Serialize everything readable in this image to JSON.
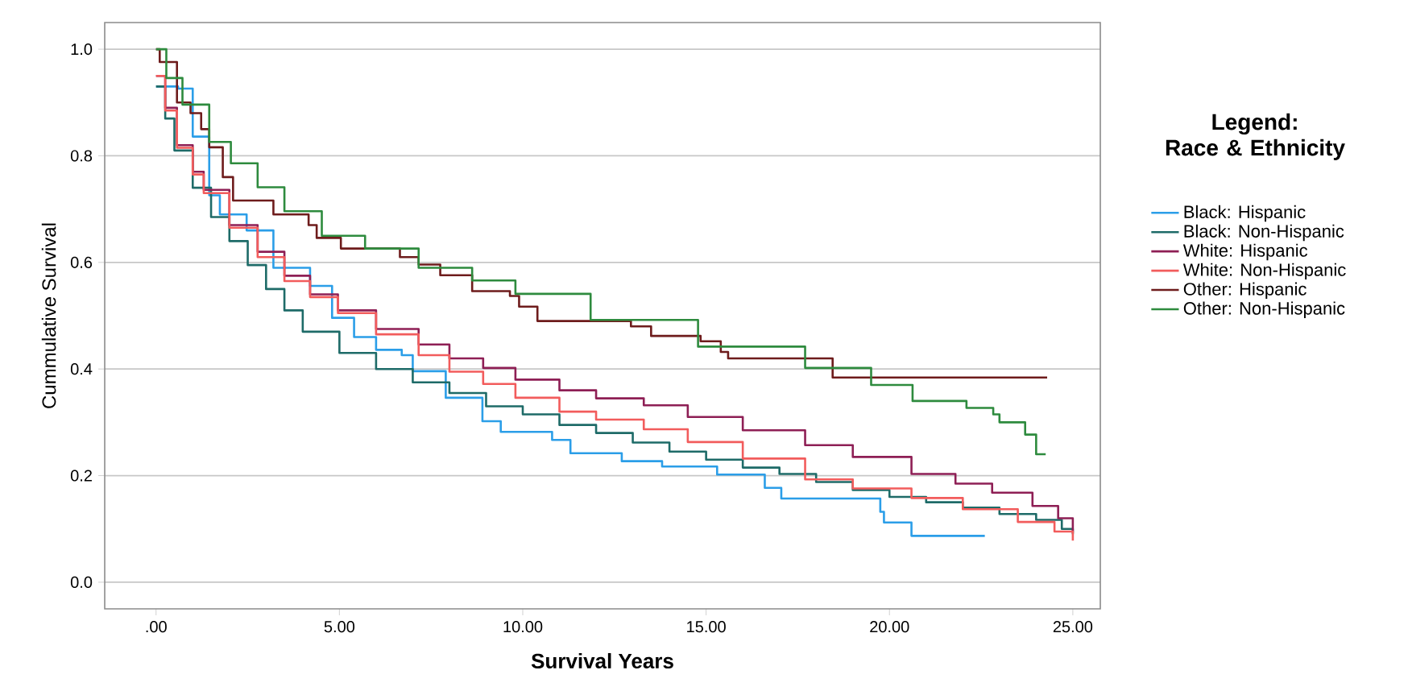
{
  "chart_data": {
    "type": "step",
    "xlabel": "Survival Years",
    "ylabel": "Cummulative Survival",
    "legend_title": "Legend: Race & Ethnicity",
    "legend": "right",
    "grid": "y",
    "xlim": [
      -1.4,
      25.75
    ],
    "ylim": [
      -0.05,
      1.05
    ],
    "xticks": [
      {
        "value": 0,
        "label": ".00"
      },
      {
        "value": 5,
        "label": "5.00"
      },
      {
        "value": 10,
        "label": "10.00"
      },
      {
        "value": 15,
        "label": "15.00"
      },
      {
        "value": 20,
        "label": "20.00"
      },
      {
        "value": 25,
        "label": "25.00"
      }
    ],
    "yticks": [
      {
        "value": 0,
        "label": "0.0"
      },
      {
        "value": 0.2,
        "label": "0.2"
      },
      {
        "value": 0.4,
        "label": "0.4"
      },
      {
        "value": 0.6,
        "label": "0.6"
      },
      {
        "value": 0.8,
        "label": "0.8"
      },
      {
        "value": 1,
        "label": "1.0"
      }
    ],
    "series": [
      {
        "name": "Black: Hispanic",
        "color": "#2b9ee8",
        "x": [
          0,
          0.6,
          1.0,
          1.45,
          1.74,
          2.47,
          3.2,
          4.2,
          4.8,
          5.4,
          6.0,
          6.7,
          7.0,
          7.9,
          8.9,
          9.4,
          10.8,
          11.3,
          12.7,
          13.8,
          15.3,
          16.6,
          17.05,
          19.75,
          19.85,
          20.6,
          22.6
        ],
        "values": [
          0.93,
          0.926,
          0.836,
          0.726,
          0.69,
          0.66,
          0.59,
          0.556,
          0.496,
          0.46,
          0.436,
          0.426,
          0.396,
          0.346,
          0.302,
          0.282,
          0.267,
          0.242,
          0.227,
          0.217,
          0.202,
          0.177,
          0.157,
          0.132,
          0.112,
          0.087,
          0.087
        ]
      },
      {
        "name": "Black: Non-Hispanic",
        "color": "#1e6b68",
        "x": [
          0,
          0.25,
          0.5,
          1,
          1.5,
          2,
          2.5,
          3,
          3.5,
          4,
          5,
          6,
          7,
          8,
          9,
          10,
          11,
          12,
          13,
          14,
          15,
          16,
          17,
          18,
          19,
          20,
          21,
          22,
          23,
          24,
          24.7,
          25
        ],
        "values": [
          0.93,
          0.87,
          0.81,
          0.74,
          0.685,
          0.64,
          0.595,
          0.55,
          0.51,
          0.47,
          0.43,
          0.4,
          0.375,
          0.355,
          0.33,
          0.315,
          0.295,
          0.28,
          0.262,
          0.245,
          0.23,
          0.215,
          0.203,
          0.188,
          0.173,
          0.16,
          0.15,
          0.14,
          0.128,
          0.117,
          0.1,
          0.09
        ]
      },
      {
        "name": "White: Hispanic",
        "color": "#8e1f55",
        "x": [
          0,
          0.25,
          0.57,
          1,
          1.3,
          2,
          2.77,
          3.5,
          4.2,
          4.96,
          6,
          7.16,
          8,
          8.92,
          9.8,
          11,
          12,
          13.3,
          14.5,
          16,
          17.7,
          19,
          20.6,
          21.8,
          22.8,
          23.9,
          24.6,
          25
        ],
        "values": [
          0.95,
          0.89,
          0.82,
          0.77,
          0.736,
          0.67,
          0.62,
          0.575,
          0.54,
          0.51,
          0.475,
          0.446,
          0.42,
          0.402,
          0.38,
          0.36,
          0.345,
          0.332,
          0.31,
          0.285,
          0.257,
          0.235,
          0.203,
          0.185,
          0.168,
          0.143,
          0.12,
          0.093
        ]
      },
      {
        "name": "White: Non-Hispanic",
        "color": "#f25c5c",
        "x": [
          0,
          0.25,
          0.57,
          1,
          1.3,
          2,
          2.77,
          3.5,
          4.2,
          4.96,
          6,
          7.16,
          8,
          8.92,
          9.8,
          11,
          12,
          13.3,
          14.5,
          16,
          17.7,
          19,
          20.6,
          22,
          23.5,
          24.5,
          25
        ],
        "values": [
          0.95,
          0.885,
          0.815,
          0.765,
          0.73,
          0.665,
          0.61,
          0.565,
          0.535,
          0.505,
          0.465,
          0.426,
          0.395,
          0.372,
          0.346,
          0.32,
          0.305,
          0.287,
          0.263,
          0.232,
          0.193,
          0.176,
          0.158,
          0.137,
          0.113,
          0.095,
          0.078
        ]
      },
      {
        "name": "Other: Hispanic",
        "color": "#6e1c1c",
        "x": [
          0,
          0.1,
          0.57,
          0.94,
          1.23,
          1.45,
          1.82,
          2.1,
          3.2,
          4.16,
          4.38,
          5.04,
          6.65,
          7.16,
          7.75,
          8.62,
          9.65,
          9.9,
          10.4,
          12.95,
          13.5,
          14.85,
          15.4,
          15.6,
          18.45,
          24.3
        ],
        "values": [
          1.0,
          0.976,
          0.9,
          0.88,
          0.85,
          0.816,
          0.76,
          0.716,
          0.69,
          0.67,
          0.646,
          0.626,
          0.61,
          0.596,
          0.576,
          0.546,
          0.537,
          0.517,
          0.49,
          0.48,
          0.462,
          0.452,
          0.432,
          0.42,
          0.384,
          0.384
        ]
      },
      {
        "name": "Other: Non-Hispanic",
        "color": "#2e8b3e",
        "x": [
          0,
          0.28,
          0.72,
          1.45,
          2.04,
          2.77,
          3.5,
          4.52,
          5.7,
          7.16,
          8.62,
          9.8,
          11.85,
          14.78,
          17.7,
          19.5,
          20.63,
          22.1,
          22.83,
          23.0,
          23.7,
          24.0,
          24.26
        ],
        "values": [
          1.0,
          0.946,
          0.896,
          0.826,
          0.786,
          0.741,
          0.696,
          0.65,
          0.626,
          0.59,
          0.566,
          0.541,
          0.492,
          0.442,
          0.402,
          0.37,
          0.34,
          0.327,
          0.315,
          0.3,
          0.277,
          0.24,
          0.24
        ]
      }
    ]
  }
}
